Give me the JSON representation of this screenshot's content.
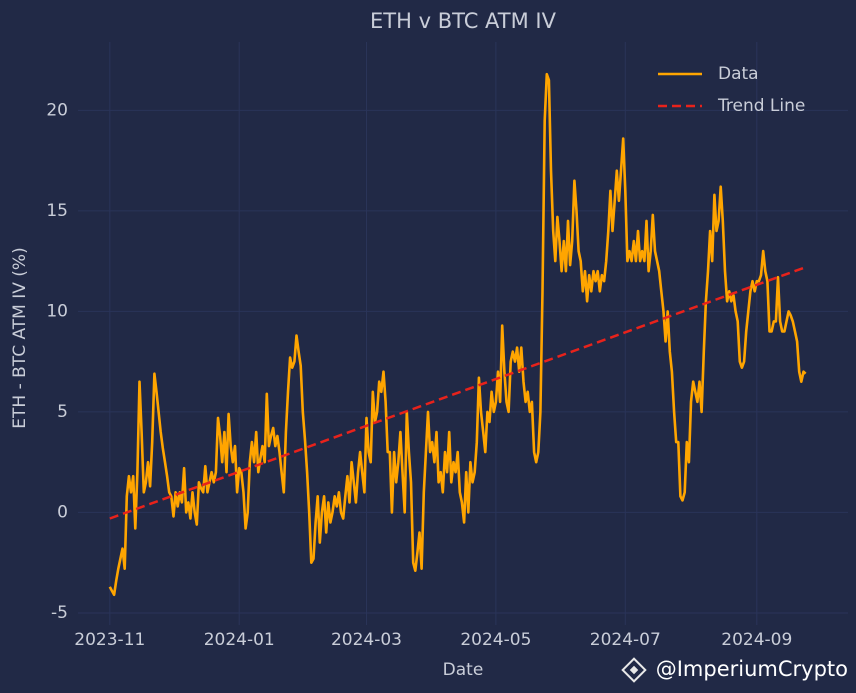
{
  "chart_data": {
    "type": "line",
    "title": "ETH v BTC ATM IV",
    "x_label": "Date",
    "y_label": "ETH - BTC ATM IV (%)",
    "watermark": "@ImperiumCrypto",
    "xlim": [
      -15,
      348
    ],
    "ylim": [
      -5.6,
      23.4
    ],
    "xticks": [
      {
        "value": 0,
        "label": "2023-11"
      },
      {
        "value": 61,
        "label": "2024-01"
      },
      {
        "value": 121,
        "label": "2024-03"
      },
      {
        "value": 182,
        "label": "2024-05"
      },
      {
        "value": 243,
        "label": "2024-07"
      },
      {
        "value": 305,
        "label": "2024-09"
      }
    ],
    "yticks": [
      -5,
      0,
      5,
      10,
      15,
      20
    ],
    "grid": true,
    "legend": "upper right",
    "series": [
      {
        "name": "Data",
        "color": "#ffa500",
        "dash": false,
        "x": [
          0,
          1,
          2,
          3,
          4,
          5,
          6,
          7,
          8,
          9,
          10,
          11,
          12,
          13,
          14,
          15,
          16,
          17,
          18,
          19,
          20,
          21,
          22,
          23,
          24,
          25,
          26,
          27,
          28,
          29,
          30,
          31,
          32,
          33,
          34,
          35,
          36,
          37,
          38,
          39,
          40,
          41,
          42,
          43,
          44,
          45,
          46,
          47,
          48,
          49,
          50,
          51,
          52,
          53,
          54,
          55,
          56,
          57,
          58,
          59,
          60,
          61,
          62,
          63,
          64,
          65,
          66,
          67,
          68,
          69,
          70,
          71,
          72,
          73,
          74,
          75,
          76,
          77,
          78,
          79,
          80,
          81,
          82,
          83,
          84,
          85,
          86,
          87,
          88,
          89,
          90,
          91,
          92,
          93,
          94,
          95,
          96,
          97,
          98,
          99,
          100,
          101,
          102,
          103,
          104,
          105,
          106,
          107,
          108,
          109,
          110,
          111,
          112,
          113,
          114,
          115,
          116,
          117,
          118,
          119,
          120,
          121,
          122,
          123,
          124,
          125,
          126,
          127,
          128,
          129,
          130,
          131,
          132,
          133,
          134,
          135,
          136,
          137,
          138,
          139,
          140,
          141,
          142,
          143,
          144,
          145,
          146,
          147,
          148,
          149,
          150,
          151,
          152,
          153,
          154,
          155,
          156,
          157,
          158,
          159,
          160,
          161,
          162,
          163,
          164,
          165,
          166,
          167,
          168,
          169,
          170,
          171,
          172,
          173,
          174,
          175,
          176,
          177,
          178,
          179,
          180,
          181,
          182,
          183,
          184,
          185,
          186,
          187,
          188,
          189,
          190,
          191,
          192,
          193,
          194,
          195,
          196,
          197,
          198,
          199,
          200,
          201,
          202,
          203,
          204,
          205,
          206,
          207,
          208,
          209,
          210,
          211,
          212,
          213,
          214,
          215,
          216,
          217,
          218,
          219,
          220,
          221,
          222,
          223,
          224,
          225,
          226,
          227,
          228,
          229,
          230,
          231,
          232,
          233,
          234,
          235,
          236,
          237,
          238,
          239,
          240,
          241,
          242,
          243,
          244,
          245,
          246,
          247,
          248,
          249,
          250,
          251,
          252,
          253,
          254,
          255,
          256,
          257,
          258,
          259,
          260,
          261,
          262,
          263,
          264,
          265,
          266,
          267,
          268,
          269,
          270,
          271,
          272,
          273,
          274,
          275,
          276,
          277,
          278,
          279,
          280,
          281,
          282,
          283,
          284,
          285,
          286,
          287,
          288,
          289,
          290,
          291,
          292,
          293,
          294,
          295,
          296,
          297,
          298,
          299,
          300,
          301,
          302,
          303,
          304,
          305,
          306,
          307,
          308,
          309,
          310,
          311,
          312,
          313,
          314,
          315,
          316,
          317,
          318,
          319,
          320,
          321,
          322,
          323,
          324,
          325,
          326,
          327,
          328
        ],
        "values": [
          -3.7,
          -3.9,
          -4.1,
          -3.4,
          -2.8,
          -2.3,
          -1.8,
          -2.8,
          0.8,
          1.8,
          1.0,
          1.8,
          -0.8,
          2.0,
          6.5,
          4.0,
          1.0,
          1.5,
          2.5,
          1.3,
          3.5,
          6.9,
          6.0,
          5.0,
          4.0,
          3.2,
          2.5,
          1.8,
          1.0,
          0.8,
          -0.2,
          1.0,
          0.3,
          1.0,
          0.5,
          2.2,
          0.0,
          0.5,
          -0.3,
          1.0,
          0.0,
          -0.6,
          1.5,
          1.2,
          1.0,
          2.3,
          1.0,
          1.5,
          2.0,
          1.5,
          2.0,
          4.7,
          3.8,
          2.5,
          4.0,
          2.0,
          4.9,
          3.3,
          2.5,
          3.3,
          1.0,
          2.2,
          2.0,
          1.0,
          -0.8,
          0.0,
          2.5,
          3.5,
          2.5,
          4.0,
          2.0,
          2.7,
          3.3,
          2.5,
          5.9,
          3.3,
          3.8,
          4.2,
          3.3,
          3.8,
          3.0,
          2.0,
          1.0,
          4.0,
          6.0,
          7.7,
          7.2,
          7.5,
          8.8,
          8.0,
          7.3,
          5.0,
          3.6,
          2.0,
          0.0,
          -2.5,
          -2.3,
          -0.5,
          0.8,
          -1.5,
          0.0,
          0.8,
          -1.0,
          0.5,
          -0.5,
          0.0,
          0.8,
          0.3,
          1.0,
          0.0,
          -0.3,
          0.8,
          1.8,
          0.5,
          2.5,
          1.5,
          0.5,
          2.0,
          3.0,
          2.0,
          1.0,
          4.7,
          3.0,
          2.5,
          6.0,
          4.5,
          5.0,
          6.5,
          6.0,
          7.0,
          5.5,
          3.0,
          3.0,
          0.0,
          3.0,
          1.5,
          2.5,
          4.0,
          2.0,
          0.0,
          5.0,
          3.0,
          1.5,
          -2.5,
          -2.9,
          -2.0,
          -1.0,
          -2.8,
          1.0,
          3.0,
          5.0,
          3.0,
          3.5,
          2.5,
          4.0,
          1.5,
          2.0,
          1.0,
          3.0,
          2.0,
          4.0,
          1.5,
          2.5,
          2.0,
          3.0,
          1.0,
          0.5,
          -0.5,
          2.0,
          0.0,
          2.5,
          1.5,
          2.0,
          3.5,
          6.7,
          5.0,
          4.0,
          3.0,
          5.0,
          4.5,
          6.0,
          5.0,
          5.5,
          7.0,
          5.5,
          9.3,
          7.0,
          5.5,
          5.0,
          7.5,
          8.0,
          7.5,
          8.2,
          7.0,
          8.2,
          6.5,
          5.5,
          6.0,
          5.0,
          5.5,
          3.0,
          2.5,
          3.0,
          5.0,
          11.0,
          19.5,
          21.8,
          21.5,
          17.0,
          14.0,
          12.5,
          14.7,
          13.5,
          12.0,
          13.5,
          12.0,
          14.5,
          12.3,
          13.5,
          16.5,
          15.0,
          13.0,
          12.5,
          11.0,
          12.0,
          10.5,
          11.8,
          11.0,
          12.0,
          11.5,
          12.0,
          11.0,
          11.8,
          11.5,
          12.5,
          14.0,
          16.0,
          14.0,
          15.5,
          17.0,
          15.5,
          17.0,
          18.6,
          16.0,
          12.5,
          13.0,
          12.5,
          13.5,
          12.5,
          14.0,
          12.5,
          13.0,
          12.5,
          14.5,
          12.0,
          13.0,
          14.8,
          13.0,
          12.5,
          12.0,
          11.0,
          10.0,
          8.5,
          10.0,
          8.0,
          7.0,
          5.0,
          3.5,
          3.5,
          0.8,
          0.6,
          1.0,
          3.5,
          2.5,
          5.5,
          6.5,
          6.0,
          5.5,
          6.5,
          5.0,
          8.0,
          10.5,
          12.0,
          14.0,
          12.5,
          15.8,
          14.0,
          14.5,
          16.2,
          14.5,
          12.0,
          10.5,
          11.0,
          10.5,
          10.8,
          10.0,
          9.5,
          7.5,
          7.2,
          7.5,
          9.0,
          10.0,
          11.0,
          11.5,
          11.0,
          11.5,
          11.5,
          11.8,
          13.0,
          12.0,
          11.5,
          9.0,
          9.0,
          9.5,
          9.5,
          11.7,
          9.5,
          9.0,
          9.0,
          9.5,
          10.0,
          9.8,
          9.5,
          9.0,
          8.5,
          7.0,
          6.5,
          7.0,
          6.9
        ]
      },
      {
        "name": "Trend Line",
        "color": "#e8221b",
        "dash": true,
        "x": [
          0,
          328
        ],
        "values": [
          -0.3,
          12.2
        ]
      }
    ]
  }
}
